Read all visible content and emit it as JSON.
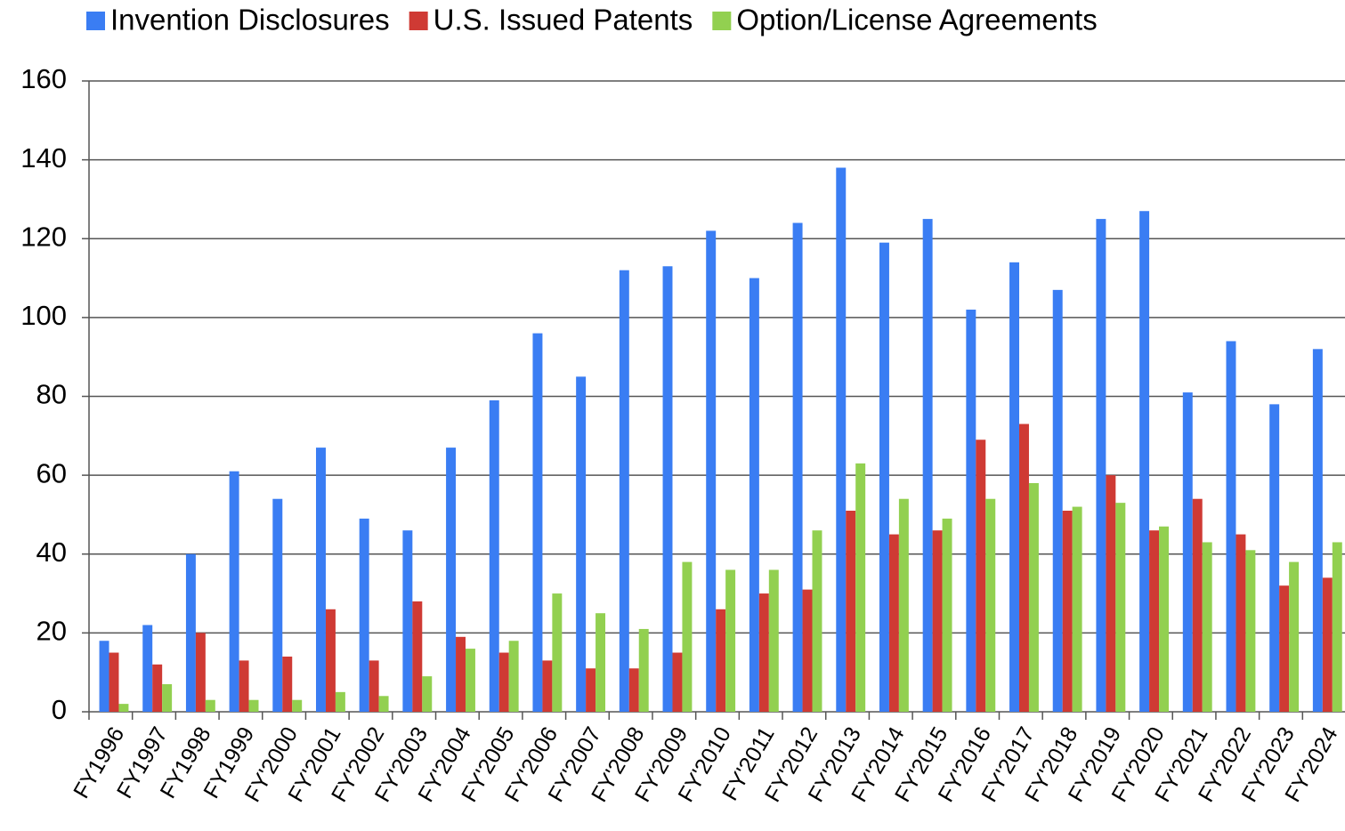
{
  "chart_data": {
    "type": "bar",
    "categories": [
      "FY1996",
      "FY1997",
      "FY1998",
      "FY1999",
      "FY'2000",
      "FY'2001",
      "FY'2002",
      "FY'2003",
      "FY'2004",
      "FY'2005",
      "FY'2006",
      "FY'2007",
      "FY'2008",
      "FY'2009",
      "FY'2010",
      "FY'2011",
      "FY'2012",
      "FY'2013",
      "FY'2014",
      "FY'2015",
      "FY'2016",
      "FY'2017",
      "FY'2018",
      "FY'2019",
      "FY'2020",
      "FY'2021",
      "FY'2022",
      "FY'2023",
      "FY'2024"
    ],
    "series": [
      {
        "name": "Invention Disclosures",
        "color": "#3a7df3",
        "values": [
          18,
          22,
          40,
          61,
          54,
          67,
          49,
          46,
          67,
          79,
          96,
          85,
          112,
          113,
          122,
          110,
          124,
          138,
          119,
          125,
          102,
          114,
          107,
          125,
          127,
          81,
          94,
          78,
          92
        ]
      },
      {
        "name": "U.S. Issued Patents",
        "color": "#cf3a34",
        "values": [
          15,
          12,
          20,
          13,
          14,
          26,
          13,
          28,
          19,
          15,
          13,
          11,
          11,
          15,
          26,
          30,
          31,
          51,
          45,
          46,
          69,
          73,
          51,
          60,
          46,
          54,
          45,
          32,
          34
        ]
      },
      {
        "name": "Option/License Agreements",
        "color": "#92d050",
        "values": [
          2,
          7,
          3,
          3,
          3,
          5,
          4,
          9,
          16,
          18,
          30,
          25,
          21,
          38,
          36,
          36,
          46,
          63,
          54,
          49,
          54,
          58,
          52,
          53,
          47,
          43,
          41,
          38,
          43
        ]
      }
    ],
    "ylim": [
      0,
      160
    ],
    "yticks": [
      0,
      20,
      40,
      60,
      80,
      100,
      120,
      140,
      160
    ],
    "grid": true,
    "legend": "top"
  }
}
